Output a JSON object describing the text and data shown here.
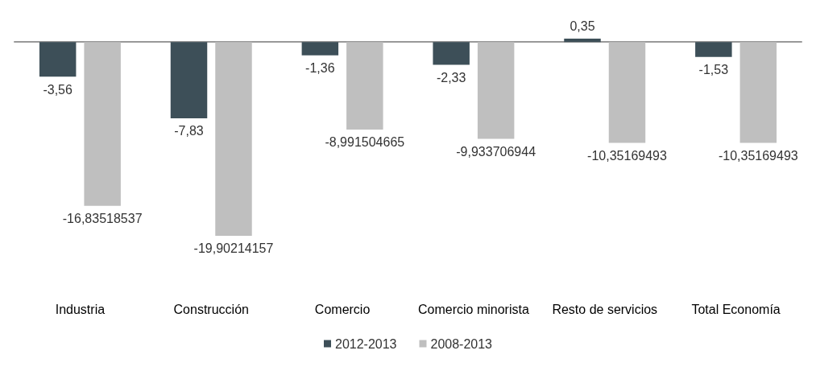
{
  "chart_data": {
    "type": "bar",
    "categories": [
      "Industria",
      "Construcción",
      "Comercio",
      "Comercio minorista",
      "Resto de servicios",
      "Total Economía"
    ],
    "series": [
      {
        "name": "2012-2013",
        "color": "#3d4f58",
        "values": [
          -3.56,
          -7.83,
          -1.36,
          -2.33,
          0.35,
          -1.53
        ],
        "value_labels": [
          "-3,56",
          "-7,83",
          "-1,36",
          "-2,33",
          "0,35",
          "-1,53"
        ]
      },
      {
        "name": "2008-2013",
        "color": "#bfbfbf",
        "values": [
          -16.83518537,
          -19.90214157,
          -8.991504665,
          -9.933706944,
          -10.35169493,
          -10.35169493
        ],
        "value_labels": [
          "-16,83518537",
          "-19,90214157",
          "-8,991504665",
          "-9,933706944",
          "-10,35169493",
          "-10,35169493"
        ]
      }
    ],
    "legend": "bottom"
  }
}
